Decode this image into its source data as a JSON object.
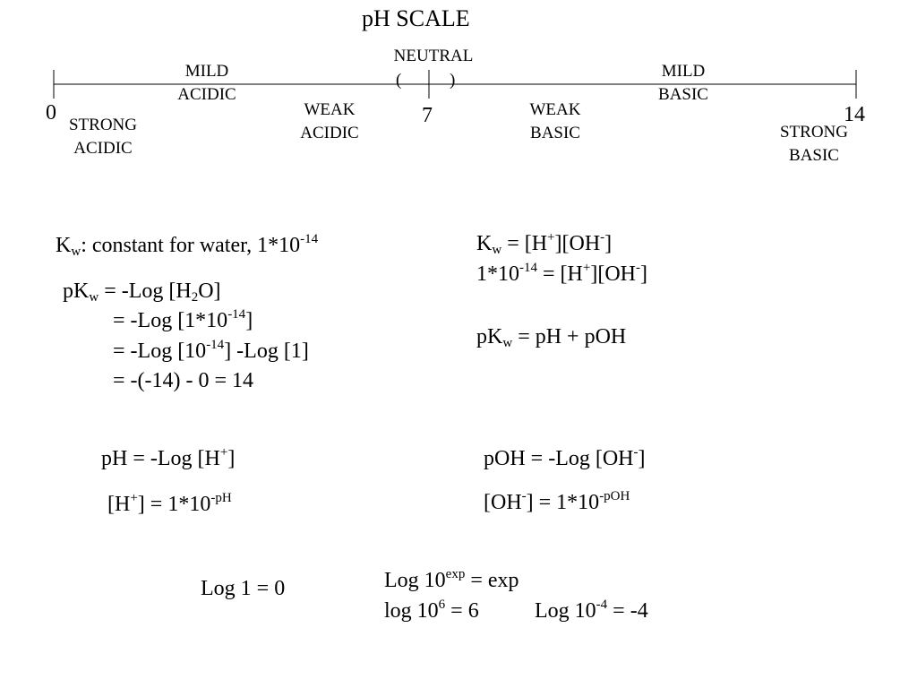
{
  "title": "pH  SCALE",
  "scale": {
    "neutral_label": "NEUTRAL",
    "paren_open": "(",
    "paren_close": ")",
    "num_0": "0",
    "num_7": "7",
    "num_14": "14",
    "mild_acidic": [
      "MILD",
      "ACIDIC"
    ],
    "mild_basic": [
      "MILD",
      "BASIC"
    ],
    "weak_acidic": [
      "WEAK",
      "ACIDIC"
    ],
    "weak_basic": [
      "WEAK",
      "BASIC"
    ],
    "strong_acidic": [
      "STRONG",
      "ACIDIC"
    ],
    "strong_basic": [
      "STRONG",
      "BASIC"
    ]
  },
  "kw_def": {
    "k": "K",
    "sub": "w",
    "text": ": constant for water, 1*10",
    "sup": "-14"
  },
  "kw_eq": {
    "line1": {
      "k": "K",
      "sub": "w",
      "a": " = [H",
      "sup1": "+",
      "b": "][OH",
      "sup2": "-",
      "c": "]"
    },
    "line2": {
      "a": "1*10",
      "sup0": "-14",
      "b": " = [H",
      "sup1": "+",
      "c": "][OH",
      "sup2": "-",
      "d": "]"
    },
    "line3": {
      "pk": "pK",
      "sub": "w",
      "rest": " = pH + pOH"
    }
  },
  "pkw": {
    "line1": {
      "pk": "pK",
      "sub": "w",
      "a": " = -Log [H",
      "sub2": "2",
      "b": "O]"
    },
    "line2": {
      "a": "= -Log [1*10",
      "sup": "-14",
      "b": "]"
    },
    "line3": {
      "a": "= -Log [10",
      "sup": "-14",
      "b": "] -Log [1]"
    },
    "line4": {
      "a": "= -(-14) - 0 = 14"
    }
  },
  "ph": {
    "line1": {
      "a": "pH = -Log [H",
      "sup": "+",
      "b": "]"
    },
    "line2": {
      "a": "[H",
      "sup": "+",
      "b": "] = 1*10",
      "sup2": "-pH"
    }
  },
  "poh": {
    "line1": {
      "a": "pOH = -Log [OH",
      "sup": "-",
      "b": "]"
    },
    "line2": {
      "a": "[OH",
      "sup": "-",
      "b": "] = 1*10",
      "sup2": "-pOH"
    }
  },
  "logs": {
    "log1": "Log 1 = 0",
    "line1": {
      "a": "Log 10",
      "sup": "exp",
      "b": " = exp"
    },
    "line2": {
      "a": "log 10",
      "sup": "6",
      "b": " = 6"
    },
    "line3": {
      "a": "Log 10",
      "sup": "-4",
      "b": " = -4"
    }
  }
}
